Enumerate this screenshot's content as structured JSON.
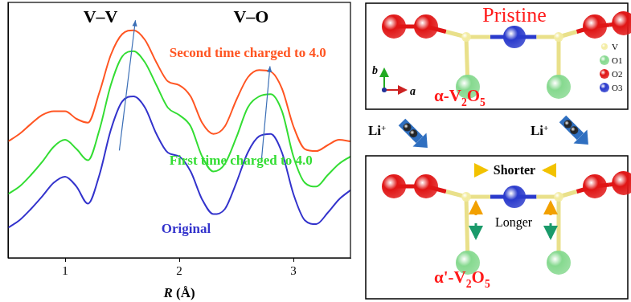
{
  "chart_data": {
    "type": "line",
    "x_label": "R (Å)",
    "x": [
      0.5,
      0.6,
      0.7,
      0.8,
      0.9,
      1.0,
      1.1,
      1.2,
      1.3,
      1.4,
      1.5,
      1.6,
      1.7,
      1.8,
      1.9,
      2.0,
      2.1,
      2.2,
      2.3,
      2.4,
      2.5,
      2.6,
      2.7,
      2.8,
      2.9,
      3.0,
      3.1,
      3.2,
      3.3,
      3.4,
      3.5
    ],
    "series": [
      {
        "name": "Original",
        "color": "#3333cc",
        "marker": "none",
        "line_style": "solid",
        "values": [
          1.18,
          1.47,
          1.91,
          2.41,
          2.94,
          3.18,
          2.79,
          2.12,
          3.24,
          5.0,
          6.12,
          6.32,
          5.88,
          4.85,
          4.12,
          3.97,
          3.38,
          2.29,
          1.71,
          1.91,
          2.94,
          4.12,
          4.76,
          4.85,
          4.12,
          2.5,
          1.47,
          1.32,
          1.76,
          2.29,
          2.65
        ]
      },
      {
        "name": "First time charged to 4.0",
        "color": "#33dd33",
        "marker": "none",
        "line_style": "solid",
        "values": [
          2.5,
          2.79,
          3.24,
          3.76,
          4.35,
          4.62,
          4.26,
          3.82,
          5.0,
          6.76,
          7.88,
          8.09,
          7.65,
          6.76,
          5.88,
          5.59,
          5.15,
          3.97,
          3.38,
          3.68,
          4.71,
          5.88,
          6.32,
          6.41,
          5.74,
          3.97,
          2.94,
          2.79,
          3.24,
          3.68,
          3.97
        ]
      },
      {
        "name": "Second time charged to 4.0",
        "color": "#ff5522",
        "marker": "none",
        "line_style": "solid",
        "values": [
          4.56,
          4.85,
          5.24,
          5.59,
          5.74,
          5.74,
          5.44,
          5.29,
          6.47,
          7.94,
          8.76,
          8.91,
          8.53,
          7.65,
          6.91,
          6.76,
          6.32,
          5.29,
          4.85,
          5.15,
          6.18,
          7.06,
          7.35,
          7.29,
          6.62,
          5.15,
          4.26,
          4.18,
          4.41,
          4.62,
          4.56
        ]
      }
    ],
    "annotations": [
      {
        "text": "V–V"
      },
      {
        "text": "V–O"
      }
    ],
    "xlim": [
      0.5,
      3.5
    ],
    "xticks": [
      1,
      2,
      3
    ],
    "ylim": [
      0,
      10
    ],
    "grid": false,
    "tick_labels": "x"
  },
  "diagram": {
    "top_panel": {
      "title": "Pristine",
      "phase": "α-V2O5"
    },
    "bottom_panel": {
      "phase": "α'-V2O5",
      "labels": [
        "Shorter",
        "Longer"
      ]
    },
    "atom_legend": [
      "V",
      "O1",
      "O2",
      "O3"
    ],
    "axes": [
      "b",
      "a"
    ],
    "arrows": [
      "Li+",
      "Li+"
    ]
  }
}
